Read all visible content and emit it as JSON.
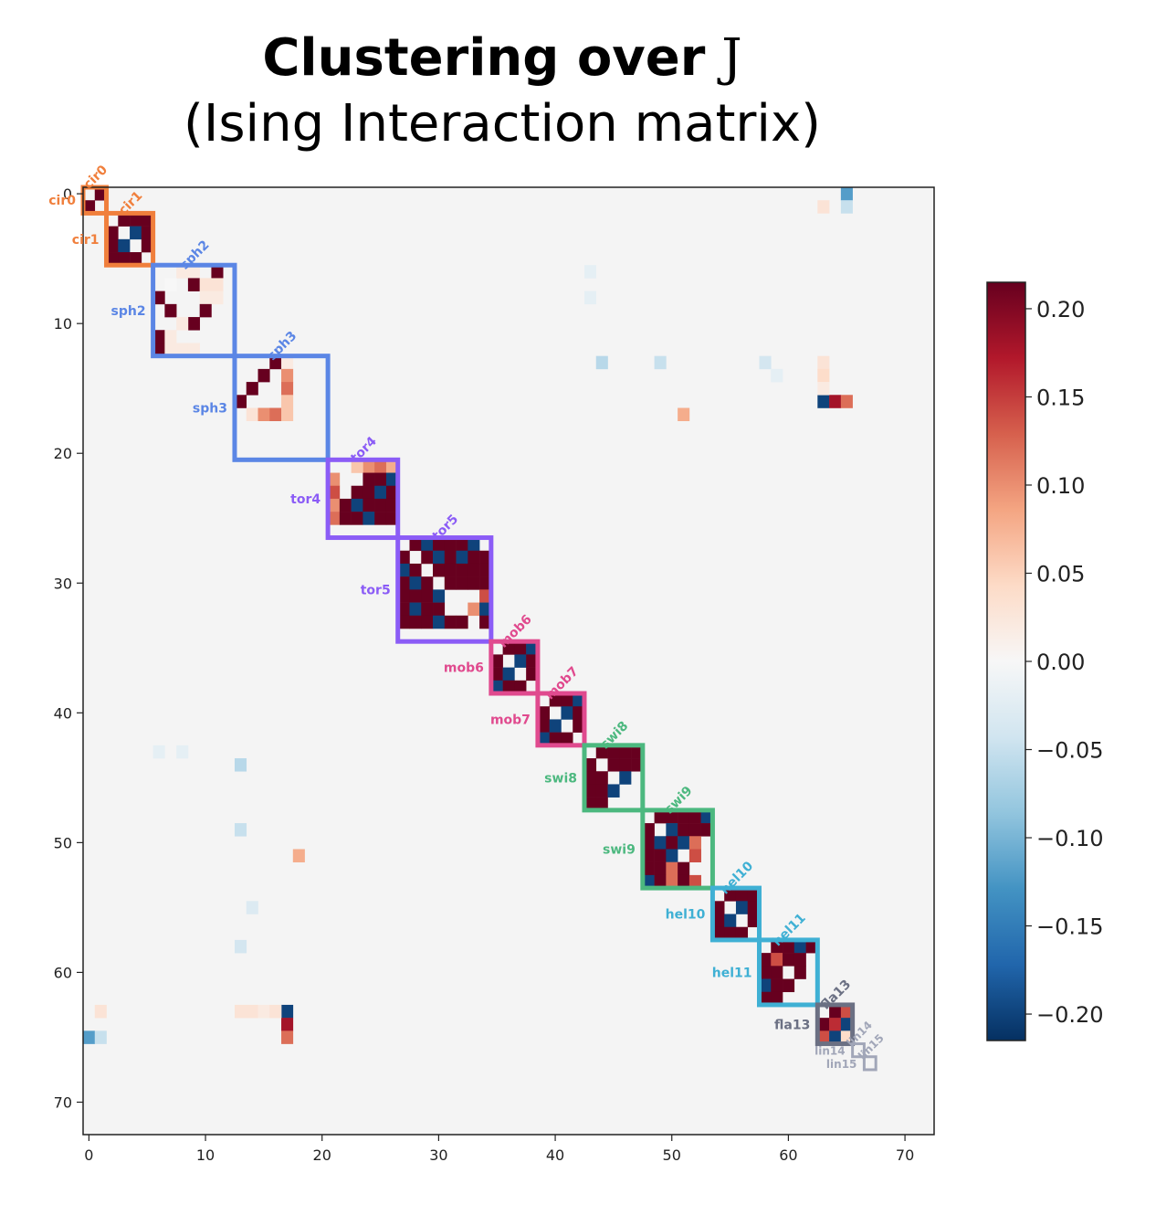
{
  "chart_data": {
    "type": "heatmap",
    "title_line1": "Clustering over",
    "title_symbol": "J",
    "title_line2": "(Ising Interaction matrix)",
    "n": 68,
    "x_ticks": [
      0,
      10,
      20,
      30,
      40,
      50,
      60,
      70
    ],
    "y_ticks": [
      0,
      10,
      20,
      30,
      40,
      50,
      60,
      70
    ],
    "xlim": [
      -0.5,
      72.5
    ],
    "ylim": [
      -0.5,
      72.5
    ],
    "colorbar": {
      "vmin": -0.215,
      "vmax": 0.215,
      "ticks": [
        0.2,
        0.15,
        0.1,
        0.05,
        0.0,
        -0.05,
        -0.1,
        -0.15,
        -0.2
      ],
      "tick_labels": [
        "0.20",
        "0.15",
        "0.10",
        "0.05",
        "0.00",
        "−0.05",
        "−0.10",
        "−0.15",
        "−0.20"
      ],
      "colormap": "RdBu_r"
    },
    "clusters": [
      {
        "label": "cir0",
        "start": 0,
        "end": 2,
        "color": "#f07f3c"
      },
      {
        "label": "cir1",
        "start": 2,
        "end": 6,
        "color": "#f07f3c"
      },
      {
        "label": "sph2",
        "start": 6,
        "end": 13,
        "color": "#5b86e5"
      },
      {
        "label": "sph3",
        "start": 13,
        "end": 21,
        "color": "#5b86e5"
      },
      {
        "label": "tor4",
        "start": 21,
        "end": 27,
        "color": "#8b5cf6"
      },
      {
        "label": "tor5",
        "start": 27,
        "end": 35,
        "color": "#8b5cf6"
      },
      {
        "label": "mob6",
        "start": 35,
        "end": 39,
        "color": "#e04a8e"
      },
      {
        "label": "mob7",
        "start": 39,
        "end": 43,
        "color": "#e04a8e"
      },
      {
        "label": "swi8",
        "start": 43,
        "end": 48,
        "color": "#4cb87f"
      },
      {
        "label": "swi9",
        "start": 48,
        "end": 54,
        "color": "#4cb87f"
      },
      {
        "label": "hel10",
        "start": 54,
        "end": 58,
        "color": "#3fb0d4"
      },
      {
        "label": "hel11",
        "start": 58,
        "end": 63,
        "color": "#3fb0d4"
      },
      {
        "label": "fla13",
        "start": 63,
        "end": 66,
        "color": "#6b7083"
      },
      {
        "label": "lin14",
        "start": 66,
        "end": 67,
        "color": "#a1a6b8"
      },
      {
        "label": "lin15",
        "start": 67,
        "end": 68,
        "color": "#a1a6b8"
      }
    ],
    "cells": [
      [
        0,
        1,
        0.22
      ],
      [
        1,
        0,
        0.22
      ],
      [
        2,
        3,
        0.22
      ],
      [
        2,
        4,
        0.22
      ],
      [
        2,
        5,
        0.22
      ],
      [
        3,
        2,
        0.22
      ],
      [
        3,
        4,
        -0.2
      ],
      [
        3,
        5,
        0.22
      ],
      [
        4,
        2,
        0.22
      ],
      [
        4,
        3,
        -0.2
      ],
      [
        4,
        5,
        0.22
      ],
      [
        5,
        2,
        0.22
      ],
      [
        5,
        3,
        0.22
      ],
      [
        5,
        4,
        0.22
      ],
      [
        6,
        11,
        0.22
      ],
      [
        6,
        8,
        0.02
      ],
      [
        6,
        9,
        0.02
      ],
      [
        7,
        7,
        0.0
      ],
      [
        7,
        9,
        0.22
      ],
      [
        7,
        10,
        0.03
      ],
      [
        7,
        11,
        0.03
      ],
      [
        8,
        6,
        0.22
      ],
      [
        8,
        10,
        0.02
      ],
      [
        8,
        11,
        0.02
      ],
      [
        9,
        7,
        0.22
      ],
      [
        9,
        10,
        0.22
      ],
      [
        10,
        9,
        0.22
      ],
      [
        10,
        8,
        0.02
      ],
      [
        11,
        6,
        0.22
      ],
      [
        11,
        7,
        0.02
      ],
      [
        12,
        6,
        0.22
      ],
      [
        12,
        7,
        0.02
      ],
      [
        12,
        8,
        0.02
      ],
      [
        12,
        9,
        0.02
      ],
      [
        13,
        16,
        0.22
      ],
      [
        13,
        17,
        0.02
      ],
      [
        14,
        15,
        0.22
      ],
      [
        14,
        17,
        0.1
      ],
      [
        15,
        14,
        0.22
      ],
      [
        15,
        17,
        0.12
      ],
      [
        16,
        13,
        0.22
      ],
      [
        16,
        17,
        0.06
      ],
      [
        17,
        14,
        0.03
      ],
      [
        17,
        15,
        0.1
      ],
      [
        17,
        16,
        0.12
      ],
      [
        17,
        17,
        0.06
      ],
      [
        21,
        24,
        0.1
      ],
      [
        21,
        25,
        0.12
      ],
      [
        21,
        26,
        0.08
      ],
      [
        21,
        23,
        0.06
      ],
      [
        22,
        21,
        0.1
      ],
      [
        22,
        24,
        0.22
      ],
      [
        22,
        25,
        0.22
      ],
      [
        22,
        26,
        -0.2
      ],
      [
        23,
        21,
        0.14
      ],
      [
        23,
        23,
        0.22
      ],
      [
        23,
        24,
        0.22
      ],
      [
        23,
        25,
        -0.2
      ],
      [
        23,
        26,
        0.22
      ],
      [
        24,
        21,
        0.1
      ],
      [
        24,
        22,
        0.22
      ],
      [
        24,
        23,
        -0.2
      ],
      [
        24,
        24,
        0.22
      ],
      [
        24,
        25,
        0.22
      ],
      [
        24,
        26,
        0.22
      ],
      [
        25,
        21,
        0.12
      ],
      [
        25,
        22,
        0.22
      ],
      [
        25,
        23,
        0.22
      ],
      [
        25,
        24,
        -0.2
      ],
      [
        25,
        25,
        0.22
      ],
      [
        25,
        26,
        0.22
      ],
      [
        27,
        28,
        0.22
      ],
      [
        27,
        29,
        -0.2
      ],
      [
        27,
        30,
        0.22
      ],
      [
        27,
        31,
        0.22
      ],
      [
        27,
        32,
        0.22
      ],
      [
        27,
        33,
        -0.2
      ],
      [
        28,
        27,
        0.22
      ],
      [
        28,
        29,
        0.22
      ],
      [
        28,
        30,
        -0.2
      ],
      [
        28,
        31,
        0.22
      ],
      [
        28,
        32,
        -0.2
      ],
      [
        28,
        33,
        0.22
      ],
      [
        28,
        34,
        0.22
      ],
      [
        29,
        27,
        -0.2
      ],
      [
        29,
        28,
        0.22
      ],
      [
        29,
        30,
        0.22
      ],
      [
        29,
        31,
        0.22
      ],
      [
        29,
        32,
        0.22
      ],
      [
        29,
        33,
        0.22
      ],
      [
        29,
        34,
        0.22
      ],
      [
        30,
        27,
        0.22
      ],
      [
        30,
        28,
        -0.2
      ],
      [
        30,
        29,
        0.22
      ],
      [
        30,
        31,
        0.22
      ],
      [
        30,
        32,
        0.22
      ],
      [
        30,
        33,
        0.22
      ],
      [
        30,
        34,
        0.22
      ],
      [
        31,
        27,
        0.22
      ],
      [
        31,
        28,
        0.22
      ],
      [
        31,
        29,
        0.22
      ],
      [
        31,
        30,
        -0.2
      ],
      [
        31,
        34,
        0.14
      ],
      [
        32,
        27,
        0.22
      ],
      [
        32,
        28,
        -0.2
      ],
      [
        32,
        29,
        0.22
      ],
      [
        32,
        30,
        0.22
      ],
      [
        32,
        33,
        0.1
      ],
      [
        32,
        34,
        -0.2
      ],
      [
        33,
        27,
        0.22
      ],
      [
        33,
        28,
        0.22
      ],
      [
        33,
        29,
        0.22
      ],
      [
        33,
        30,
        -0.2
      ],
      [
        33,
        31,
        0.22
      ],
      [
        33,
        32,
        0.22
      ],
      [
        33,
        34,
        0.22
      ],
      [
        35,
        36,
        0.22
      ],
      [
        35,
        37,
        0.22
      ],
      [
        35,
        38,
        -0.2
      ],
      [
        36,
        35,
        0.22
      ],
      [
        36,
        37,
        -0.2
      ],
      [
        36,
        38,
        0.22
      ],
      [
        37,
        35,
        0.22
      ],
      [
        37,
        36,
        -0.2
      ],
      [
        37,
        38,
        0.22
      ],
      [
        38,
        35,
        -0.2
      ],
      [
        38,
        36,
        0.22
      ],
      [
        38,
        37,
        0.22
      ],
      [
        39,
        40,
        0.22
      ],
      [
        39,
        41,
        0.22
      ],
      [
        39,
        42,
        -0.2
      ],
      [
        40,
        39,
        0.22
      ],
      [
        40,
        41,
        -0.2
      ],
      [
        40,
        42,
        0.22
      ],
      [
        41,
        39,
        0.22
      ],
      [
        41,
        40,
        -0.2
      ],
      [
        41,
        42,
        0.22
      ],
      [
        42,
        39,
        -0.2
      ],
      [
        42,
        40,
        0.22
      ],
      [
        42,
        41,
        0.22
      ],
      [
        43,
        44,
        0.22
      ],
      [
        43,
        45,
        0.22
      ],
      [
        43,
        46,
        0.22
      ],
      [
        43,
        47,
        0.22
      ],
      [
        44,
        43,
        0.22
      ],
      [
        44,
        45,
        0.22
      ],
      [
        44,
        46,
        0.22
      ],
      [
        44,
        47,
        0.22
      ],
      [
        45,
        43,
        0.22
      ],
      [
        45,
        44,
        0.22
      ],
      [
        45,
        46,
        -0.2
      ],
      [
        46,
        43,
        0.22
      ],
      [
        46,
        44,
        0.22
      ],
      [
        46,
        45,
        -0.2
      ],
      [
        47,
        43,
        0.22
      ],
      [
        47,
        44,
        0.22
      ],
      [
        48,
        49,
        0.22
      ],
      [
        48,
        50,
        0.22
      ],
      [
        48,
        51,
        0.22
      ],
      [
        48,
        52,
        0.22
      ],
      [
        48,
        53,
        -0.2
      ],
      [
        49,
        48,
        0.22
      ],
      [
        49,
        50,
        -0.2
      ],
      [
        49,
        51,
        0.22
      ],
      [
        49,
        52,
        0.22
      ],
      [
        49,
        53,
        0.22
      ],
      [
        50,
        48,
        0.22
      ],
      [
        50,
        49,
        -0.2
      ],
      [
        50,
        50,
        0.22
      ],
      [
        50,
        51,
        -0.2
      ],
      [
        50,
        52,
        0.12
      ],
      [
        51,
        48,
        0.22
      ],
      [
        51,
        49,
        0.22
      ],
      [
        51,
        50,
        -0.2
      ],
      [
        51,
        52,
        0.14
      ],
      [
        52,
        48,
        0.22
      ],
      [
        52,
        49,
        0.22
      ],
      [
        52,
        50,
        0.12
      ],
      [
        52,
        51,
        0.22
      ],
      [
        53,
        48,
        -0.2
      ],
      [
        53,
        49,
        0.22
      ],
      [
        53,
        50,
        0.12
      ],
      [
        53,
        51,
        0.22
      ],
      [
        53,
        52,
        0.14
      ],
      [
        54,
        55,
        0.22
      ],
      [
        54,
        56,
        0.22
      ],
      [
        54,
        57,
        0.22
      ],
      [
        55,
        54,
        0.22
      ],
      [
        55,
        56,
        -0.2
      ],
      [
        55,
        57,
        0.22
      ],
      [
        56,
        54,
        0.22
      ],
      [
        56,
        55,
        -0.2
      ],
      [
        56,
        57,
        0.22
      ],
      [
        57,
        54,
        0.22
      ],
      [
        57,
        55,
        0.22
      ],
      [
        57,
        56,
        0.22
      ],
      [
        58,
        59,
        0.22
      ],
      [
        58,
        60,
        0.22
      ],
      [
        58,
        61,
        -0.2
      ],
      [
        58,
        62,
        0.22
      ],
      [
        59,
        58,
        0.22
      ],
      [
        59,
        59,
        0.14
      ],
      [
        59,
        60,
        0.22
      ],
      [
        59,
        61,
        0.22
      ],
      [
        60,
        58,
        0.22
      ],
      [
        60,
        59,
        0.22
      ],
      [
        60,
        61,
        0.22
      ],
      [
        61,
        58,
        -0.2
      ],
      [
        61,
        59,
        0.22
      ],
      [
        61,
        60,
        0.22
      ],
      [
        62,
        58,
        0.22
      ],
      [
        62,
        59,
        0.22
      ],
      [
        63,
        64,
        0.22
      ],
      [
        63,
        65,
        0.14
      ],
      [
        64,
        63,
        0.22
      ],
      [
        64,
        64,
        0.16
      ],
      [
        64,
        65,
        -0.2
      ],
      [
        65,
        63,
        0.14
      ],
      [
        65,
        64,
        -0.2
      ],
      [
        65,
        65,
        0.04
      ],
      [
        0,
        65,
        -0.12
      ],
      [
        1,
        65,
        -0.05
      ],
      [
        1,
        63,
        0.03
      ],
      [
        16,
        63,
        -0.2
      ],
      [
        16,
        64,
        0.18
      ],
      [
        16,
        65,
        0.12
      ],
      [
        13,
        63,
        0.03
      ],
      [
        14,
        63,
        0.04
      ],
      [
        15,
        63,
        0.02
      ],
      [
        17,
        51,
        0.08
      ],
      [
        13,
        44,
        -0.06
      ],
      [
        13,
        49,
        -0.05
      ],
      [
        13,
        58,
        -0.04
      ],
      [
        14,
        59,
        -0.02
      ],
      [
        6,
        43,
        -0.02
      ],
      [
        8,
        43,
        -0.02
      ],
      [
        44,
        13,
        -0.06
      ],
      [
        49,
        13,
        -0.05
      ],
      [
        51,
        18,
        0.08
      ],
      [
        43,
        6,
        -0.02
      ],
      [
        43,
        8,
        -0.02
      ],
      [
        55,
        14,
        -0.03
      ],
      [
        58,
        13,
        -0.04
      ],
      [
        63,
        1,
        0.03
      ],
      [
        65,
        0,
        -0.12
      ],
      [
        65,
        1,
        -0.05
      ],
      [
        63,
        17,
        -0.2
      ],
      [
        64,
        17,
        0.18
      ],
      [
        65,
        17,
        0.12
      ],
      [
        63,
        13,
        0.03
      ],
      [
        63,
        14,
        0.03
      ],
      [
        63,
        15,
        0.02
      ],
      [
        63,
        16,
        0.03
      ]
    ]
  }
}
